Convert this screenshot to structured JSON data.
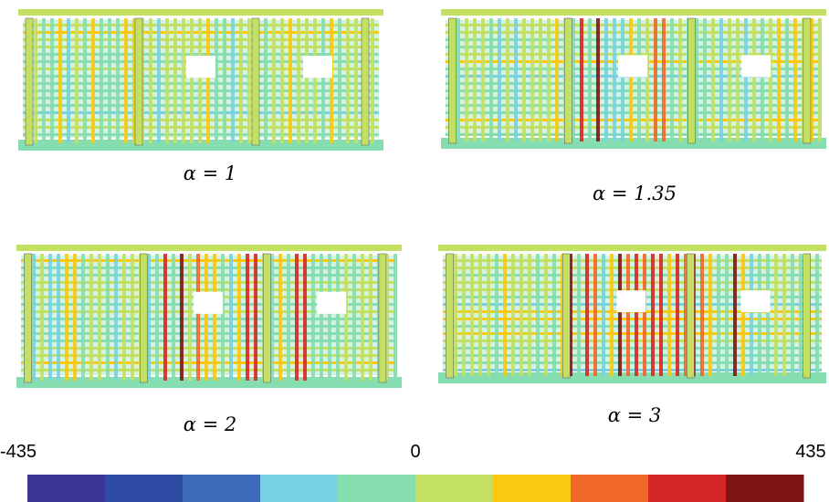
{
  "panels": [
    {
      "caption": "α = 1"
    },
    {
      "caption": "α = 1.35"
    },
    {
      "caption": "α = 2"
    },
    {
      "caption": "α = 3"
    }
  ],
  "colorbar": {
    "ticks": [
      -435,
      0,
      435
    ],
    "colors": [
      "#3a3597",
      "#2e4ca6",
      "#3b6ab8",
      "#78d1e0",
      "#85ddb0",
      "#c3e063",
      "#f9c90f",
      "#f0672a",
      "#d52826",
      "#7d1612"
    ]
  }
}
